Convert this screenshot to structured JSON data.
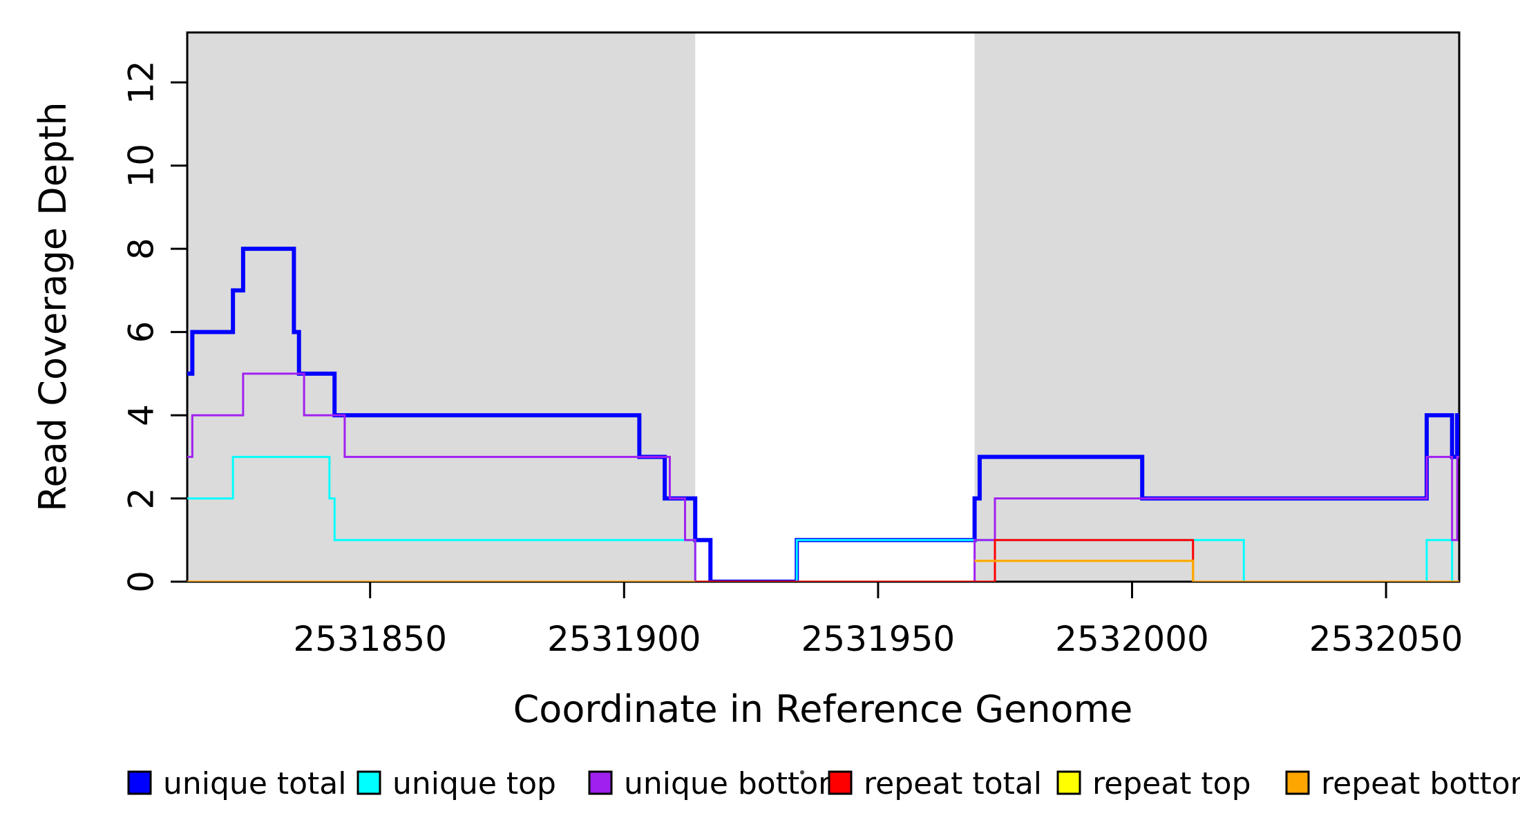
{
  "chart_data": {
    "type": "line",
    "subtype": "step-coverage-plot",
    "title": "",
    "xlabel": "Coordinate in Reference Genome",
    "ylabel": "Read Coverage Depth",
    "xlim": [
      2531814,
      2532064.4
    ],
    "ylim": [
      0,
      13.2
    ],
    "x_ticks": [
      2531850,
      2531900,
      2531950,
      2532000,
      2532050
    ],
    "y_ticks": [
      0,
      2,
      4,
      6,
      8,
      10,
      12
    ],
    "grid": false,
    "legend_position": "bottom",
    "background_bands": {
      "color": "#DBDBDB",
      "meaning": "shaded reference regions",
      "regions": [
        [
          2531814,
          2531914
        ],
        [
          2531969,
          2532064.4
        ]
      ]
    },
    "series": [
      {
        "name": "unique total",
        "color": "#0000FF",
        "line_width": 6,
        "segments": [
          [
            [
              2531814,
              5
            ],
            [
              2531815,
              6
            ],
            [
              2531823,
              7
            ],
            [
              2531825,
              8
            ],
            [
              2531835,
              6
            ],
            [
              2531836,
              5
            ],
            [
              2531843,
              4
            ],
            [
              2531903,
              3
            ],
            [
              2531908,
              2
            ],
            [
              2531914,
              1
            ],
            [
              2531917,
              0
            ],
            [
              2531934,
              1
            ],
            [
              2531969,
              2
            ],
            [
              2531970,
              3
            ],
            [
              2532002,
              2
            ],
            [
              2532058,
              4
            ],
            [
              2532063,
              3
            ],
            [
              2532064,
              4
            ],
            [
              2532064.4,
              4
            ]
          ]
        ]
      },
      {
        "name": "unique top",
        "color": "#00FFFF",
        "line_width": 3,
        "segments": [
          [
            [
              2531814,
              2
            ],
            [
              2531823,
              3
            ],
            [
              2531842,
              2
            ],
            [
              2531843,
              1
            ],
            [
              2531914,
              0
            ],
            [
              2531934,
              1
            ],
            [
              2532022,
              0
            ],
            [
              2532058,
              1
            ],
            [
              2532063,
              0
            ],
            [
              2532064.4,
              0
            ]
          ]
        ]
      },
      {
        "name": "unique bottom",
        "color": "#A020F0",
        "line_width": 3,
        "segments": [
          [
            [
              2531814,
              3
            ],
            [
              2531815,
              4
            ],
            [
              2531825,
              5
            ],
            [
              2531837,
              4
            ],
            [
              2531845,
              3
            ],
            [
              2531909,
              2
            ],
            [
              2531912,
              1
            ],
            [
              2531914,
              0
            ],
            [
              2531969,
              1
            ],
            [
              2531973,
              2
            ],
            [
              2532058,
              3
            ],
            [
              2532063,
              1
            ],
            [
              2532064,
              3
            ],
            [
              2532064.4,
              3
            ]
          ]
        ]
      },
      {
        "name": "repeat total",
        "color": "#FF0000",
        "line_width": 3,
        "segments": [
          [
            [
              2531814,
              0
            ],
            [
              2531973,
              1
            ],
            [
              2532012,
              0
            ],
            [
              2532064.4,
              0
            ]
          ]
        ]
      },
      {
        "name": "repeat top",
        "color": "#FFFF00",
        "line_width": 3,
        "segments": [
          [
            [
              2531814,
              0
            ],
            [
              2531914,
              0
            ]
          ],
          [
            [
              2531969,
              0.5
            ],
            [
              2532012,
              0
            ],
            [
              2532064.4,
              0
            ]
          ]
        ]
      },
      {
        "name": "repeat bottom",
        "color": "#FFA500",
        "line_width": 3,
        "segments": [
          [
            [
              2531814,
              0
            ],
            [
              2531914,
              0
            ]
          ],
          [
            [
              2531969,
              0.5
            ],
            [
              2532012,
              0
            ],
            [
              2532064.4,
              0
            ]
          ]
        ]
      }
    ],
    "legend": {
      "items": [
        {
          "label": "unique total",
          "color": "#0000FF"
        },
        {
          "label": "unique top",
          "color": "#00FFFF"
        },
        {
          "label": "unique bottom",
          "color": "#A020F0"
        },
        {
          "label": "repeat total",
          "color": "#FF0000"
        },
        {
          "label": "repeat top",
          "color": "#FFFF00"
        },
        {
          "label": "repeat bottom",
          "color": "#FFA500"
        }
      ]
    }
  }
}
